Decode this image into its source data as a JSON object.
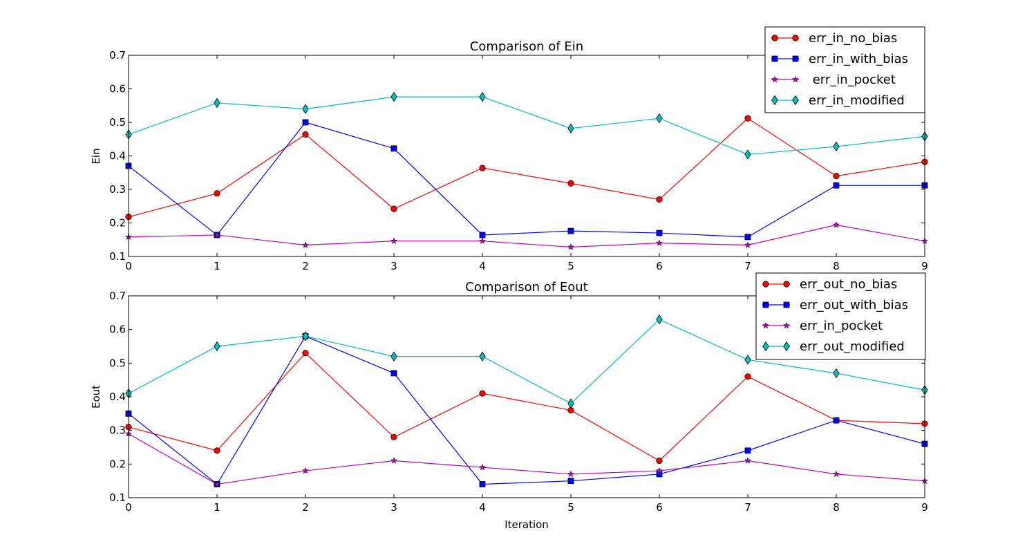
{
  "chart_data": [
    {
      "type": "line",
      "title": "Comparison of Ein",
      "xlabel": "",
      "ylabel": "Ein",
      "xlim": [
        0,
        9
      ],
      "ylim": [
        0.1,
        0.7
      ],
      "x_ticks": [
        0,
        1,
        2,
        3,
        4,
        5,
        6,
        7,
        8,
        9
      ],
      "x_tick_labels": [
        "0",
        "1",
        "2",
        "3",
        "4",
        "5",
        "6",
        "7",
        "8",
        "9"
      ],
      "y_ticks": [
        0.1,
        0.2,
        0.3,
        0.4,
        0.5,
        0.6,
        0.7
      ],
      "y_tick_labels": [
        "0.1",
        "0.2",
        "0.3",
        "0.4",
        "0.5",
        "0.6",
        "0.7"
      ],
      "grid": false,
      "legend_position": "top-right",
      "x": [
        0,
        1,
        2,
        3,
        4,
        5,
        6,
        7,
        8,
        9
      ],
      "series": [
        {
          "name": "err_in_no_bias",
          "color": "#ff0000",
          "marker": "circle",
          "values": [
            0.218,
            0.288,
            0.464,
            0.242,
            0.364,
            0.318,
            0.27,
            0.512,
            0.34,
            0.382
          ]
        },
        {
          "name": "err_in_with_bias",
          "color": "#0000ff",
          "marker": "square",
          "values": [
            0.37,
            0.164,
            0.5,
            0.422,
            0.164,
            0.176,
            0.17,
            0.158,
            0.312,
            0.312
          ]
        },
        {
          "name": " err_in_pocket",
          "color": "#bf00bf",
          "marker": "star",
          "values": [
            0.158,
            0.164,
            0.134,
            0.146,
            0.146,
            0.128,
            0.14,
            0.134,
            0.194,
            0.146
          ]
        },
        {
          "name": "err_in_modified",
          "color": "#00bfbf",
          "marker": "diamond",
          "values": [
            0.464,
            0.558,
            0.54,
            0.576,
            0.576,
            0.482,
            0.512,
            0.404,
            0.428,
            0.458
          ]
        }
      ]
    },
    {
      "type": "line",
      "title": "Comparison of Eout",
      "xlabel": "Iteration",
      "ylabel": "Eout",
      "xlim": [
        0,
        9
      ],
      "ylim": [
        0.1,
        0.7
      ],
      "x_ticks": [
        0,
        1,
        2,
        3,
        4,
        5,
        6,
        7,
        8,
        9
      ],
      "x_tick_labels": [
        "0",
        "1",
        "2",
        "3",
        "4",
        "5",
        "6",
        "7",
        "8",
        "9"
      ],
      "y_ticks": [
        0.1,
        0.2,
        0.3,
        0.4,
        0.5,
        0.6,
        0.7
      ],
      "y_tick_labels": [
        "0.1",
        "0.2",
        "0.3",
        "0.4",
        "0.5",
        "0.6",
        "0.7"
      ],
      "grid": false,
      "legend_position": "top-right",
      "x": [
        0,
        1,
        2,
        3,
        4,
        5,
        6,
        7,
        8,
        9
      ],
      "series": [
        {
          "name": "err_out_no_bias",
          "color": "#ff0000",
          "marker": "circle",
          "values": [
            0.31,
            0.24,
            0.53,
            0.28,
            0.41,
            0.36,
            0.21,
            0.46,
            0.33,
            0.32
          ]
        },
        {
          "name": "err_out_with_bias",
          "color": "#0000ff",
          "marker": "square",
          "values": [
            0.35,
            0.14,
            0.58,
            0.47,
            0.14,
            0.15,
            0.17,
            0.24,
            0.33,
            0.26
          ]
        },
        {
          "name": "err_in_pocket",
          "color": "#bf00bf",
          "marker": "star",
          "values": [
            0.29,
            0.14,
            0.18,
            0.21,
            0.19,
            0.17,
            0.18,
            0.21,
            0.17,
            0.15
          ]
        },
        {
          "name": "err_out_modified",
          "color": "#00bfbf",
          "marker": "diamond",
          "values": [
            0.41,
            0.55,
            0.58,
            0.52,
            0.52,
            0.38,
            0.63,
            0.51,
            0.47,
            0.42
          ]
        }
      ]
    }
  ]
}
